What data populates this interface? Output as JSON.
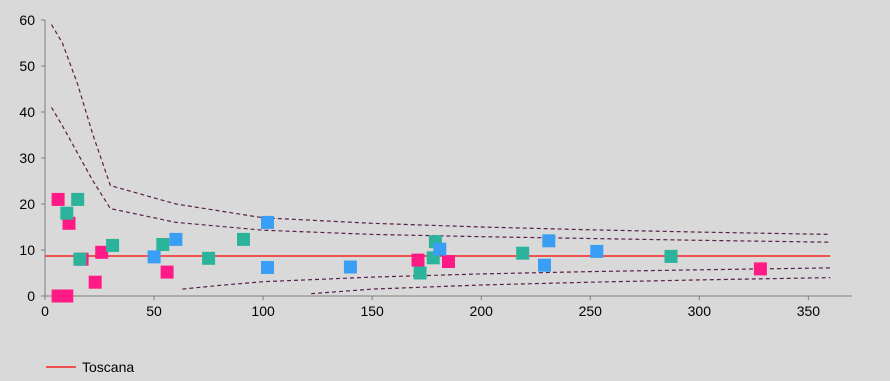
{
  "chart_data": {
    "type": "scatter",
    "title": "",
    "xlabel": "",
    "ylabel": "",
    "xlim": [
      0,
      370
    ],
    "ylim": [
      0,
      60
    ],
    "x_ticks": [
      0,
      50,
      100,
      150,
      200,
      250,
      300,
      350
    ],
    "y_ticks": [
      0,
      10,
      20,
      30,
      40,
      50,
      60
    ],
    "x_tick_labels": [
      "0",
      "50",
      "100",
      "150",
      "200",
      "250",
      "300",
      "350"
    ],
    "y_tick_labels": [
      "0",
      "10",
      "20",
      "30",
      "40",
      "50",
      "60"
    ],
    "grid": false,
    "legend_position": "bottom-left",
    "reference_line": {
      "name": "Toscana",
      "y": 8.7,
      "color": "#ff0000"
    },
    "funnel_limits": [
      {
        "color": "#5a1f4a",
        "points": [
          [
            3,
            59
          ],
          [
            8,
            55
          ],
          [
            15,
            46
          ],
          [
            22,
            35
          ],
          [
            30,
            24
          ],
          [
            60,
            20
          ],
          [
            100,
            17
          ],
          [
            150,
            15.8
          ],
          [
            200,
            15
          ],
          [
            250,
            14.4
          ],
          [
            300,
            13.9
          ],
          [
            360,
            13.4
          ]
        ]
      },
      {
        "color": "#5a1f4a",
        "points": [
          [
            3,
            41
          ],
          [
            8,
            37
          ],
          [
            15,
            31
          ],
          [
            22,
            25
          ],
          [
            30,
            19
          ],
          [
            60,
            16
          ],
          [
            100,
            14.3
          ],
          [
            150,
            13.4
          ],
          [
            200,
            12.9
          ],
          [
            250,
            12.5
          ],
          [
            300,
            12.1
          ],
          [
            360,
            11.7
          ]
        ]
      },
      {
        "color": "#5a1f4a",
        "points": [
          [
            63,
            1.5
          ],
          [
            80,
            2.3
          ],
          [
            100,
            3.1
          ],
          [
            150,
            4.1
          ],
          [
            200,
            4.8
          ],
          [
            250,
            5.3
          ],
          [
            300,
            5.7
          ],
          [
            360,
            6.1
          ]
        ]
      },
      {
        "color": "#5a1f4a",
        "points": [
          [
            122,
            0.5
          ],
          [
            150,
            1.5
          ],
          [
            200,
            2.4
          ],
          [
            250,
            3.0
          ],
          [
            300,
            3.5
          ],
          [
            360,
            4.0
          ]
        ]
      }
    ],
    "series": [
      {
        "color": "#ff1a85",
        "points": [
          [
            6,
            21
          ],
          [
            6,
            0
          ],
          [
            10,
            0
          ],
          [
            11,
            15.8
          ],
          [
            17,
            8
          ],
          [
            23,
            3
          ],
          [
            26,
            9.5
          ],
          [
            56,
            5.2
          ],
          [
            171,
            7.8
          ],
          [
            185,
            7.5
          ],
          [
            328,
            5.9
          ]
        ]
      },
      {
        "color": "#2bb39b",
        "points": [
          [
            10,
            18
          ],
          [
            15,
            21
          ],
          [
            16,
            8
          ],
          [
            31,
            11
          ],
          [
            54,
            11.2
          ],
          [
            75,
            8.2
          ],
          [
            91,
            12.3
          ],
          [
            172,
            5
          ],
          [
            178,
            8.3
          ],
          [
            179,
            11.8
          ],
          [
            219,
            9.3
          ],
          [
            287,
            8.6
          ]
        ]
      },
      {
        "color": "#3a9ef5",
        "points": [
          [
            50,
            8.5
          ],
          [
            60,
            12.3
          ],
          [
            102,
            16
          ],
          [
            102,
            6.2
          ],
          [
            140,
            6.3
          ],
          [
            181,
            10.2
          ],
          [
            229,
            6.7
          ],
          [
            231,
            12
          ],
          [
            253,
            9.7
          ]
        ]
      }
    ]
  }
}
